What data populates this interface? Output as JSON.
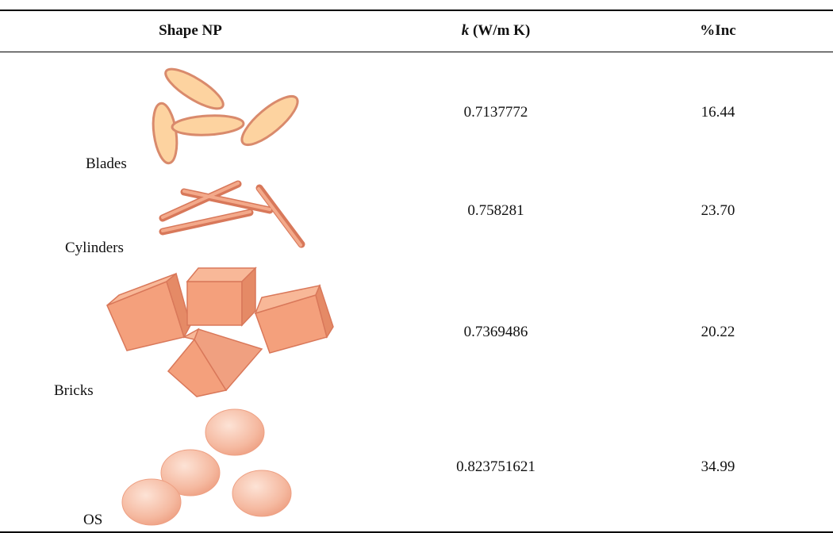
{
  "table": {
    "headers": [
      "Shape NP",
      {
        "symbol": "k",
        "unit": "(W/m K)"
      },
      "%Inc"
    ],
    "rows": [
      [
        "Blades",
        "0.7137772",
        "16.44"
      ],
      [
        "Cylinders",
        "0.758281",
        "23.70"
      ],
      [
        "Bricks",
        "0.7369486",
        "20.22"
      ],
      [
        "OS",
        "0.823751621",
        "34.99"
      ]
    ]
  }
}
